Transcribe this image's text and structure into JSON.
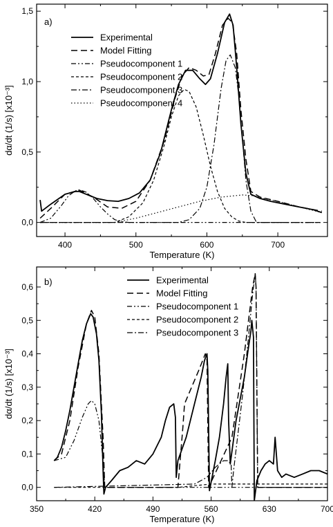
{
  "chart_data": [
    {
      "type": "line",
      "panel_label": "a)",
      "xlabel": "Temperature (K)",
      "ylabel": "dα/dt (1/s) [x10⁻³]",
      "xlim": [
        360,
        770
      ],
      "ylim": [
        -0.1,
        1.55
      ],
      "xticks": [
        400,
        500,
        600,
        700
      ],
      "xtick_labels": [
        "400",
        "500",
        "600",
        "700"
      ],
      "yticks": [
        0.0,
        0.5,
        1.0,
        1.5
      ],
      "ytick_labels": [
        "0,0",
        "0,5",
        "1,0",
        "1,5"
      ],
      "legend_position": "top-left",
      "series": [
        {
          "name": "Experimental",
          "style": "solid",
          "x": [
            365,
            367,
            380,
            400,
            415,
            420,
            430,
            445,
            460,
            475,
            490,
            505,
            520,
            535,
            550,
            560,
            570,
            580,
            590,
            598,
            605,
            615,
            625,
            632,
            637,
            642,
            648,
            655,
            662,
            675,
            690,
            710,
            730,
            750,
            762
          ],
          "y": [
            0.16,
            0.08,
            0.13,
            0.2,
            0.22,
            0.22,
            0.2,
            0.17,
            0.155,
            0.15,
            0.17,
            0.21,
            0.3,
            0.5,
            0.8,
            0.98,
            1.08,
            1.08,
            1.02,
            0.98,
            1.02,
            1.2,
            1.42,
            1.48,
            1.4,
            1.1,
            0.7,
            0.35,
            0.2,
            0.17,
            0.15,
            0.13,
            0.11,
            0.09,
            0.07
          ]
        },
        {
          "name": "Model Fitting",
          "style": "dash",
          "x": [
            365,
            380,
            400,
            420,
            440,
            460,
            480,
            500,
            520,
            540,
            555,
            565,
            575,
            585,
            595,
            603,
            612,
            622,
            630,
            636,
            642,
            648,
            655,
            662,
            675,
            700,
            730,
            762
          ],
          "y": [
            0.03,
            0.1,
            0.2,
            0.23,
            0.18,
            0.11,
            0.1,
            0.15,
            0.3,
            0.58,
            0.88,
            1.04,
            1.1,
            1.08,
            1.04,
            1.05,
            1.2,
            1.4,
            1.45,
            1.42,
            1.2,
            0.8,
            0.45,
            0.22,
            0.18,
            0.15,
            0.11,
            0.08
          ]
        },
        {
          "name": "Pseudocomponent 1",
          "style": "dashdotdot",
          "x": [
            365,
            380,
            395,
            405,
            415,
            422,
            430,
            440,
            450,
            460,
            470,
            480,
            490,
            760
          ],
          "y": [
            0.0,
            0.03,
            0.12,
            0.19,
            0.225,
            0.23,
            0.215,
            0.17,
            0.11,
            0.06,
            0.02,
            0.005,
            0.0,
            0.0
          ]
        },
        {
          "name": "Pseudocomponent 2",
          "style": "dash-short",
          "x": [
            365,
            470,
            490,
            510,
            525,
            540,
            550,
            560,
            568,
            575,
            585,
            595,
            605,
            615,
            625,
            635,
            645,
            655,
            670,
            760
          ],
          "y": [
            0.0,
            0.0,
            0.04,
            0.14,
            0.3,
            0.55,
            0.75,
            0.9,
            0.945,
            0.93,
            0.82,
            0.62,
            0.4,
            0.22,
            0.1,
            0.04,
            0.01,
            0.0,
            0.0,
            0.0
          ]
        },
        {
          "name": "Pseudocomponent 3",
          "style": "dashdot",
          "x": [
            365,
            560,
            575,
            590,
            600,
            610,
            620,
            627,
            633,
            640,
            645,
            650,
            655,
            662,
            670,
            760
          ],
          "y": [
            0.0,
            0.0,
            0.02,
            0.1,
            0.25,
            0.55,
            0.95,
            1.15,
            1.19,
            1.1,
            0.9,
            0.6,
            0.3,
            0.08,
            0.0,
            0.0
          ]
        },
        {
          "name": "Pseudocomponent 4",
          "style": "dot",
          "x": [
            365,
            470,
            500,
            530,
            560,
            590,
            620,
            650,
            665,
            680,
            700,
            730,
            762
          ],
          "y": [
            0.0,
            0.0,
            0.03,
            0.07,
            0.11,
            0.15,
            0.18,
            0.195,
            0.19,
            0.17,
            0.15,
            0.11,
            0.07
          ]
        }
      ]
    },
    {
      "type": "line",
      "panel_label": "b)",
      "xlabel": "Temperature (K)",
      "ylabel": "dα/dt (1/s) [x10⁻³]",
      "xlim": [
        350,
        700
      ],
      "ylim": [
        -0.04,
        0.66
      ],
      "xticks": [
        350,
        420,
        490,
        560,
        630,
        700
      ],
      "xtick_labels": [
        "350",
        "420",
        "490",
        "560",
        "630",
        "700"
      ],
      "yticks": [
        0.0,
        0.1,
        0.2,
        0.3,
        0.4,
        0.5,
        0.6
      ],
      "ytick_labels": [
        "0,0",
        "0,1",
        "0,2",
        "0,3",
        "0,4",
        "0,5",
        "0,6"
      ],
      "legend_position": "top-center",
      "series": [
        {
          "name": "Experimental",
          "style": "solid",
          "x": [
            371,
            375,
            380,
            385,
            390,
            395,
            400,
            405,
            410,
            415,
            418,
            422,
            425,
            428,
            430,
            431,
            433,
            440,
            450,
            460,
            470,
            480,
            490,
            500,
            505,
            510,
            515,
            517,
            518,
            520,
            530,
            540,
            548,
            552,
            555,
            556,
            558,
            565,
            570,
            575,
            578,
            580,
            581,
            583,
            590,
            600,
            605,
            608,
            609,
            611,
            612,
            615,
            620,
            625,
            630,
            635,
            637,
            640,
            645,
            650,
            660,
            670,
            680,
            690,
            700
          ],
          "y": [
            0.08,
            0.09,
            0.12,
            0.17,
            0.23,
            0.3,
            0.37,
            0.44,
            0.49,
            0.52,
            0.51,
            0.46,
            0.38,
            0.22,
            0.05,
            -0.02,
            0.0,
            0.02,
            0.05,
            0.06,
            0.08,
            0.07,
            0.1,
            0.15,
            0.2,
            0.24,
            0.25,
            0.21,
            0.03,
            0.08,
            0.15,
            0.25,
            0.33,
            0.38,
            0.4,
            0.35,
            -0.01,
            0.08,
            0.15,
            0.25,
            0.33,
            0.37,
            0.2,
            0.07,
            0.2,
            0.33,
            0.42,
            0.47,
            0.5,
            0.45,
            -0.04,
            0.02,
            0.05,
            0.07,
            0.08,
            0.07,
            0.15,
            0.05,
            0.03,
            0.04,
            0.03,
            0.04,
            0.05,
            0.05,
            0.04
          ]
        },
        {
          "name": "Model Fitting",
          "style": "dash",
          "x": [
            371,
            380,
            390,
            400,
            410,
            416,
            420,
            425,
            430,
            432,
            520,
            526,
            528,
            545,
            553,
            555,
            557,
            585,
            600,
            610,
            613,
            614,
            616,
            640,
            700
          ],
          "y": [
            0.08,
            0.1,
            0.2,
            0.36,
            0.49,
            0.53,
            0.51,
            0.4,
            0.15,
            0.0,
            0.0,
            0.18,
            0.25,
            0.35,
            0.4,
            0.38,
            0.0,
            0.15,
            0.4,
            0.6,
            0.64,
            0.6,
            0.0,
            0.0,
            0.0
          ]
        },
        {
          "name": "Pseudocomponent 1",
          "style": "dashdotdot",
          "x": [
            371,
            385,
            395,
            405,
            412,
            416,
            420,
            425,
            430,
            432,
            700
          ],
          "y": [
            0.08,
            0.09,
            0.14,
            0.21,
            0.25,
            0.26,
            0.25,
            0.2,
            0.08,
            0.0,
            0.0
          ]
        },
        {
          "name": "Pseudocomponent 2",
          "style": "dash-short",
          "x": [
            371,
            520,
            540,
            560,
            580,
            590,
            600,
            610,
            620,
            630,
            640,
            660,
            700
          ],
          "y": [
            0.0,
            0.0,
            0.005,
            0.01,
            0.01,
            0.01,
            0.01,
            0.01,
            0.01,
            0.01,
            0.01,
            0.01,
            0.01
          ]
        },
        {
          "name": "Pseudocomponent 3",
          "style": "dashdot",
          "x": [
            371,
            540,
            555,
            565,
            575,
            580,
            584,
            585,
            587,
            598,
            605,
            610,
            613,
            614,
            616,
            700
          ],
          "y": [
            0.0,
            0.01,
            0.03,
            0.06,
            0.08,
            0.08,
            0.07,
            0.0,
            0.05,
            0.28,
            0.45,
            0.58,
            0.64,
            0.6,
            0.0,
            0.0
          ]
        }
      ]
    }
  ]
}
